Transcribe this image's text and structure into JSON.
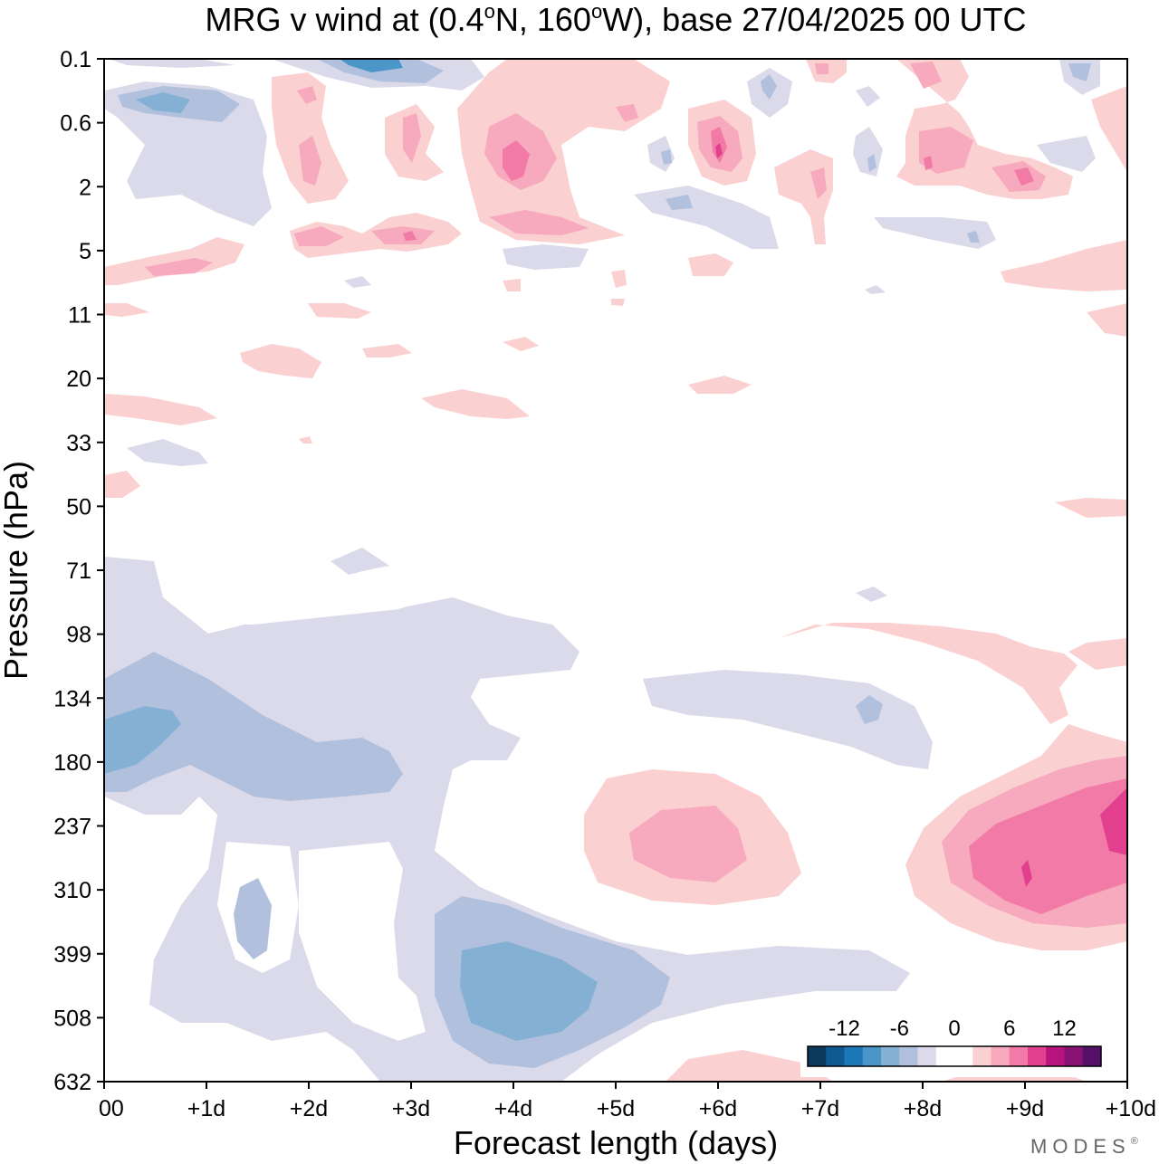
{
  "chart_data": {
    "type": "heatmap",
    "title": {
      "prefix": "MRG v wind at (0.4",
      "lat_suffix": "N, 160",
      "lon_suffix": "W),  base 27/04/2025  00 UTC",
      "degree": "o"
    },
    "xlabel": "Forecast length (days)",
    "ylabel": "Pressure (hPa)",
    "x_ticks": [
      "00",
      "+1d",
      "+2d",
      "+3d",
      "+4d",
      "+5d",
      "+6d",
      "+7d",
      "+8d",
      "+9d",
      "+10d"
    ],
    "xlim": [
      0,
      10
    ],
    "y_ticks": [
      "0.1",
      "0.6",
      "2",
      "5",
      "11",
      "20",
      "33",
      "50",
      "71",
      "98",
      "134",
      "180",
      "237",
      "310",
      "399",
      "508",
      "632"
    ],
    "y_scale": "log-pressure, top = 0.1 hPa, bottom = 632 hPa",
    "colorbar": {
      "labels": [
        "-12",
        "-6",
        "0",
        "6",
        "12"
      ],
      "colors": [
        "#0b3a5c",
        "#0e5b94",
        "#1a78b8",
        "#4a96c8",
        "#84b0d4",
        "#b1c0dd",
        "#dadaea",
        "#ffffff",
        "#ffffff",
        "#fbd0d1",
        "#f7a9bd",
        "#f27aa6",
        "#e2408f",
        "#b8137e",
        "#871273",
        "#56106a"
      ],
      "placement": "bottom-right"
    },
    "features": [
      {
        "name": "negative-lower-left",
        "x_days": [
          0,
          4.6
        ],
        "pressure_hPa": [
          90,
          630
        ],
        "sign": "negative"
      },
      {
        "name": "negative-core-4d",
        "x_days": 4.3,
        "pressure_hPa": 450,
        "sign": "negative"
      },
      {
        "name": "negative-core-0d",
        "x_days": 0.3,
        "pressure_hPa": 160,
        "sign": "negative"
      },
      {
        "name": "positive-6d",
        "x_days": 6.0,
        "pressure_hPa": 250,
        "sign": "positive"
      },
      {
        "name": "positive-core-9d",
        "x_days": 9.6,
        "pressure_hPa": 260,
        "sign": "positive"
      },
      {
        "name": "upper-alternating",
        "x_days": [
          0,
          10
        ],
        "pressure_hPa": [
          0.1,
          12
        ],
        "sign": "mixed"
      }
    ]
  },
  "branding": {
    "text": "MODES",
    "mark": "®"
  }
}
